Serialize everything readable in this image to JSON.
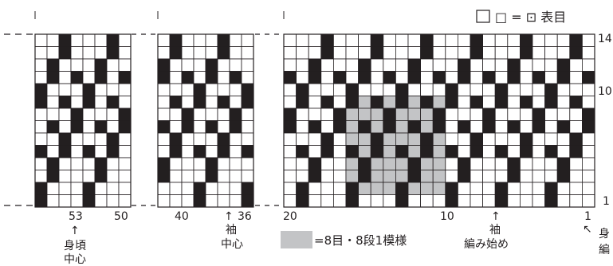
{
  "legend": {
    "symbol_equals": "□ = ⊡ 表目",
    "pattern_note": "=8目・8段1模様"
  },
  "row_labels": [
    "14",
    "10",
    "1"
  ],
  "panel_a": {
    "stitch_labels": [
      "53",
      "50"
    ],
    "annotation": [
      "↑",
      "身頃",
      "中心"
    ]
  },
  "panel_b": {
    "stitch_labels": [
      "40",
      "36"
    ],
    "annotation": [
      "↑",
      "袖",
      "中心"
    ]
  },
  "panel_c": {
    "stitch_labels": [
      "20",
      "10",
      "1"
    ],
    "sleeve_start": [
      "↑",
      "袖",
      "編み始め"
    ],
    "body_start": [
      "↖",
      "身",
      "編"
    ]
  },
  "colors": {
    "filled": "#231f20",
    "empty": "#ffffff",
    "highlight": "#c3c4c6",
    "line": "#231f20"
  }
}
